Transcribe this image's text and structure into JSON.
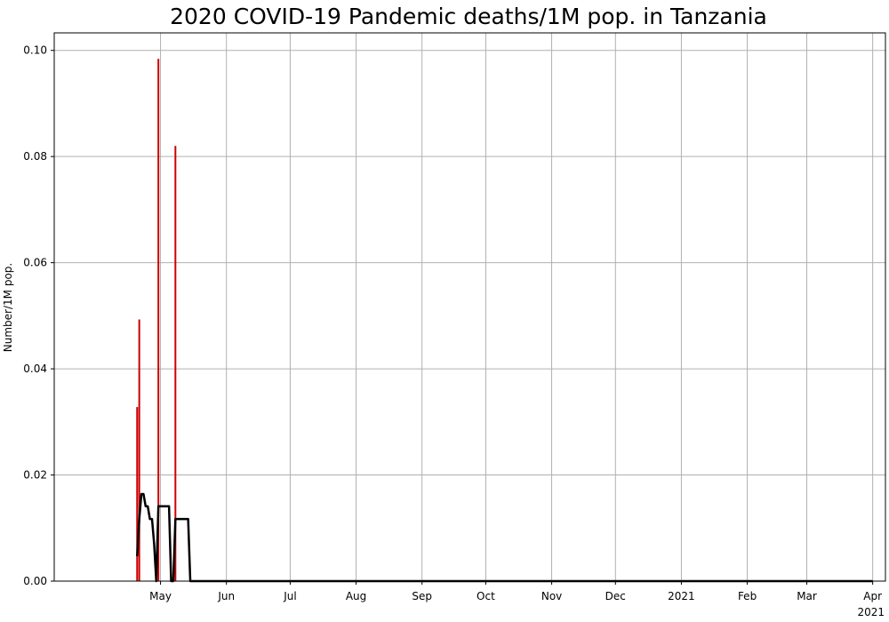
{
  "chart_data": {
    "type": "bar",
    "title": "2020 COVID-19 Pandemic deaths/1M pop. in Tanzania",
    "xlabel": "",
    "ylabel": "Number/1M pop.",
    "ylim": [
      0,
      0.1033
    ],
    "xlim": [
      "2020-03-12",
      "2021-04-07"
    ],
    "yticks": [
      0.0,
      0.02,
      0.04,
      0.06,
      0.08,
      0.1
    ],
    "ytick_labels": [
      "0.00",
      "0.02",
      "0.04",
      "0.06",
      "0.08",
      "0.10"
    ],
    "xticks": [
      "2020-05-01",
      "2020-06-01",
      "2020-07-01",
      "2020-08-01",
      "2020-09-01",
      "2020-10-01",
      "2020-11-01",
      "2020-12-01",
      "2021-01-01",
      "2021-02-01",
      "2021-03-01",
      "2021-04-01"
    ],
    "xtick_labels": [
      "May",
      "Jun",
      "Jul",
      "Aug",
      "Sep",
      "Oct",
      "Nov",
      "Dec",
      "2021",
      "Feb",
      "Mar",
      "Apr"
    ],
    "x_offset_label": "2021",
    "grid": true,
    "series": [
      {
        "kind": "bar",
        "color": "#cc0000",
        "x": [
          "2020-04-20",
          "2020-04-21",
          "2020-04-30",
          "2020-05-08"
        ],
        "values": [
          0.0328,
          0.0493,
          0.0984,
          0.082
        ]
      },
      {
        "kind": "line",
        "color": "#000000",
        "x": [
          "2020-04-20",
          "2020-04-21",
          "2020-04-22",
          "2020-04-23",
          "2020-04-24",
          "2020-04-25",
          "2020-04-26",
          "2020-04-27",
          "2020-04-28",
          "2020-04-29",
          "2020-04-30",
          "2020-05-01",
          "2020-05-02",
          "2020-05-03",
          "2020-05-04",
          "2020-05-05",
          "2020-05-06",
          "2020-05-07",
          "2020-05-08",
          "2020-05-09",
          "2020-05-10",
          "2020-05-11",
          "2020-05-12",
          "2020-05-13",
          "2020-05-14",
          "2020-05-15",
          "2020-05-16",
          "2021-04-01"
        ],
        "values": [
          0.0047,
          0.0117,
          0.0164,
          0.0164,
          0.0141,
          0.0141,
          0.0117,
          0.0117,
          0.007,
          0.0,
          0.0141,
          0.0141,
          0.0141,
          0.0141,
          0.0141,
          0.0141,
          0.0,
          0.0,
          0.0117,
          0.0117,
          0.0117,
          0.0117,
          0.0117,
          0.0117,
          0.0117,
          0.0,
          0.0,
          0.0
        ]
      }
    ]
  }
}
